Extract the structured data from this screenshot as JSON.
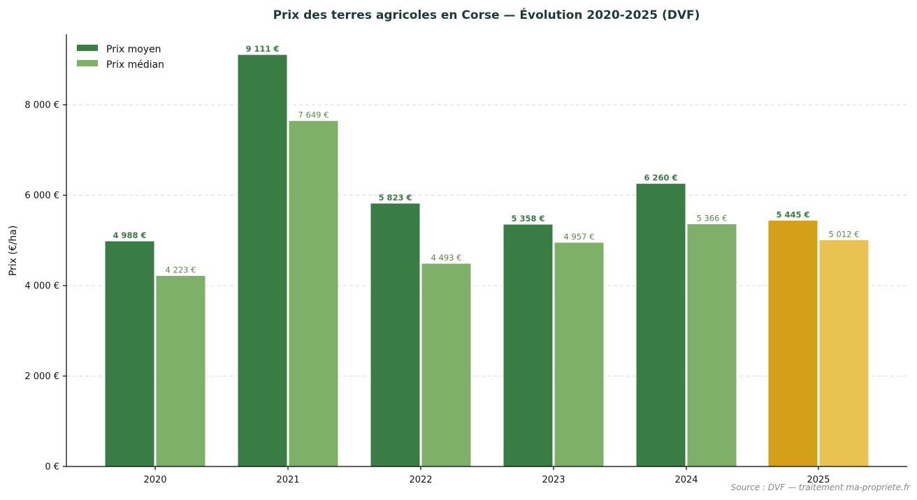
{
  "chart_data": {
    "type": "bar",
    "title": "Prix des terres agricoles en Corse — Évolution 2020-2025 (DVF)",
    "ylabel": "Prix (€/ha)",
    "xlabel": "",
    "categories": [
      "2020",
      "2021",
      "2022",
      "2023",
      "2024",
      "2025"
    ],
    "series": [
      {
        "name": "Prix moyen",
        "values": [
          4988,
          9111,
          5823,
          5358,
          6260,
          5445
        ],
        "labels": [
          "4 988 €",
          "9 111 €",
          "5 823 €",
          "5 358 €",
          "6 260 €",
          "5 445 €"
        ],
        "color": "#3a7d44",
        "highlight_color": "#d4a017"
      },
      {
        "name": "Prix médian",
        "values": [
          4223,
          7649,
          4493,
          4957,
          5366,
          5012
        ],
        "labels": [
          "4 223 €",
          "7 649 €",
          "4 493 €",
          "4 957 €",
          "5 366 €",
          "5 012 €"
        ],
        "color": "#7fb069",
        "highlight_color": "#e8c352"
      }
    ],
    "highlight_category": "2025",
    "ylim": [
      0,
      9560
    ],
    "yticks": [
      0,
      2000,
      4000,
      6000,
      8000
    ],
    "ytick_labels": [
      "0 €",
      "2 000 €",
      "4 000 €",
      "6 000 €",
      "8 000 €"
    ],
    "grid": "horizontal-dashed",
    "legend_position": "top-left",
    "source": "Source : DVF — traitement ma-propriete.fr"
  }
}
